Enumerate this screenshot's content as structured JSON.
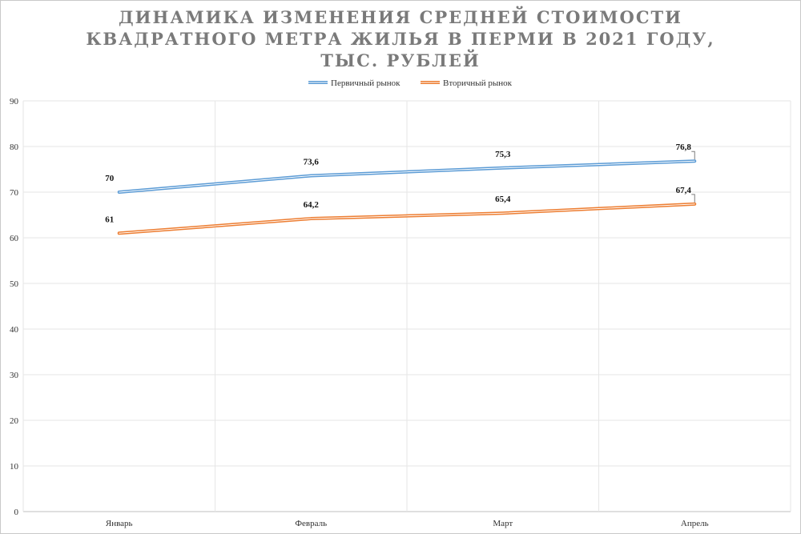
{
  "chart_data": {
    "type": "line",
    "title": "Динамика изменения средней стоимости квадратного метра жилья в Перми в 2021 году, тыс. рублей",
    "categories": [
      "Январь",
      "Февраль",
      "Март",
      "Апрель"
    ],
    "series": [
      {
        "name": "Первичный рынок",
        "color": "#5b9bd5",
        "values": [
          70,
          73.6,
          75.3,
          76.8
        ],
        "labels": [
          "70",
          "73,6",
          "75,3",
          "76,8"
        ]
      },
      {
        "name": "Вторичный рынок",
        "color": "#ed7d31",
        "values": [
          61,
          64.2,
          65.4,
          67.4
        ],
        "labels": [
          "61",
          "64,2",
          "65,4",
          "67,4"
        ]
      }
    ],
    "ylim": [
      0,
      90
    ],
    "yticks": [
      0,
      10,
      20,
      30,
      40,
      50,
      60,
      70,
      80,
      90
    ],
    "grid": true,
    "legend": "top-center"
  }
}
